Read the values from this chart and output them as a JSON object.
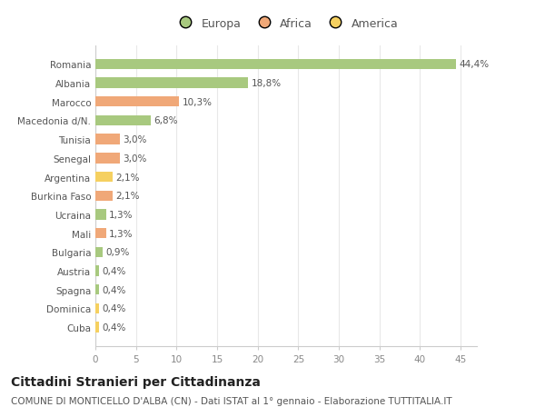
{
  "categories": [
    "Romania",
    "Albania",
    "Marocco",
    "Macedonia d/N.",
    "Tunisia",
    "Senegal",
    "Argentina",
    "Burkina Faso",
    "Ucraina",
    "Mali",
    "Bulgaria",
    "Austria",
    "Spagna",
    "Dominica",
    "Cuba"
  ],
  "values": [
    44.4,
    18.8,
    10.3,
    6.8,
    3.0,
    3.0,
    2.1,
    2.1,
    1.3,
    1.3,
    0.9,
    0.4,
    0.4,
    0.4,
    0.4
  ],
  "labels": [
    "44,4%",
    "18,8%",
    "10,3%",
    "6,8%",
    "3,0%",
    "3,0%",
    "2,1%",
    "2,1%",
    "1,3%",
    "1,3%",
    "0,9%",
    "0,4%",
    "0,4%",
    "0,4%",
    "0,4%"
  ],
  "colors": [
    "#a8c97f",
    "#a8c97f",
    "#f0a878",
    "#a8c97f",
    "#f0a878",
    "#f0a878",
    "#f5d060",
    "#f0a878",
    "#a8c97f",
    "#f0a878",
    "#a8c97f",
    "#a8c97f",
    "#a8c97f",
    "#f5d060",
    "#f5d060"
  ],
  "legend": {
    "Europa": "#a8c97f",
    "Africa": "#f0a878",
    "America": "#f5d060"
  },
  "xlim": [
    0,
    47
  ],
  "xticks": [
    0,
    5,
    10,
    15,
    20,
    25,
    30,
    35,
    40,
    45
  ],
  "title": "Cittadini Stranieri per Cittadinanza",
  "subtitle": "COMUNE DI MONTICELLO D'ALBA (CN) - Dati ISTAT al 1° gennaio - Elaborazione TUTTITALIA.IT",
  "background_color": "#ffffff",
  "grid_color": "#e8e8e8",
  "bar_height": 0.55,
  "label_fontsize": 7.5,
  "tick_fontsize": 7.5,
  "ytick_fontsize": 7.5,
  "title_fontsize": 10,
  "subtitle_fontsize": 7.5
}
